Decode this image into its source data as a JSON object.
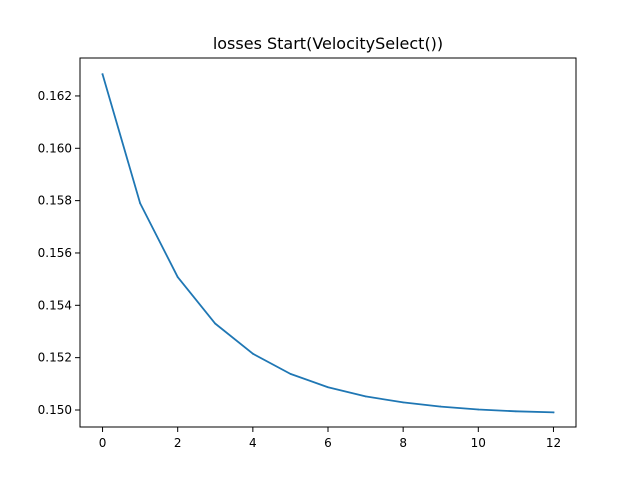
{
  "chart_data": {
    "type": "line",
    "title": "losses Start(VelocitySelect())",
    "xlabel": "",
    "ylabel": "",
    "xlim": [
      -0.6,
      12.6
    ],
    "ylim": [
      0.14935,
      0.16345
    ],
    "xticks": [
      0,
      2,
      4,
      6,
      8,
      10,
      12
    ],
    "xtick_labels": [
      "0",
      "2",
      "4",
      "6",
      "8",
      "10",
      "12"
    ],
    "yticks": [
      0.15,
      0.152,
      0.154,
      0.156,
      0.158,
      0.16,
      0.162
    ],
    "ytick_labels": [
      "0.150",
      "0.152",
      "0.154",
      "0.156",
      "0.158",
      "0.160",
      "0.162"
    ],
    "grid": false,
    "series": [
      {
        "color": "#1f77b4",
        "x": [
          0,
          1,
          2,
          3,
          4,
          5,
          6,
          7,
          8,
          9,
          10,
          11,
          12
        ],
        "y": [
          0.16283,
          0.1579,
          0.15508,
          0.1533,
          0.15215,
          0.15138,
          0.15087,
          0.15052,
          0.15029,
          0.15013,
          0.15002,
          0.14995,
          0.14991
        ]
      }
    ]
  }
}
